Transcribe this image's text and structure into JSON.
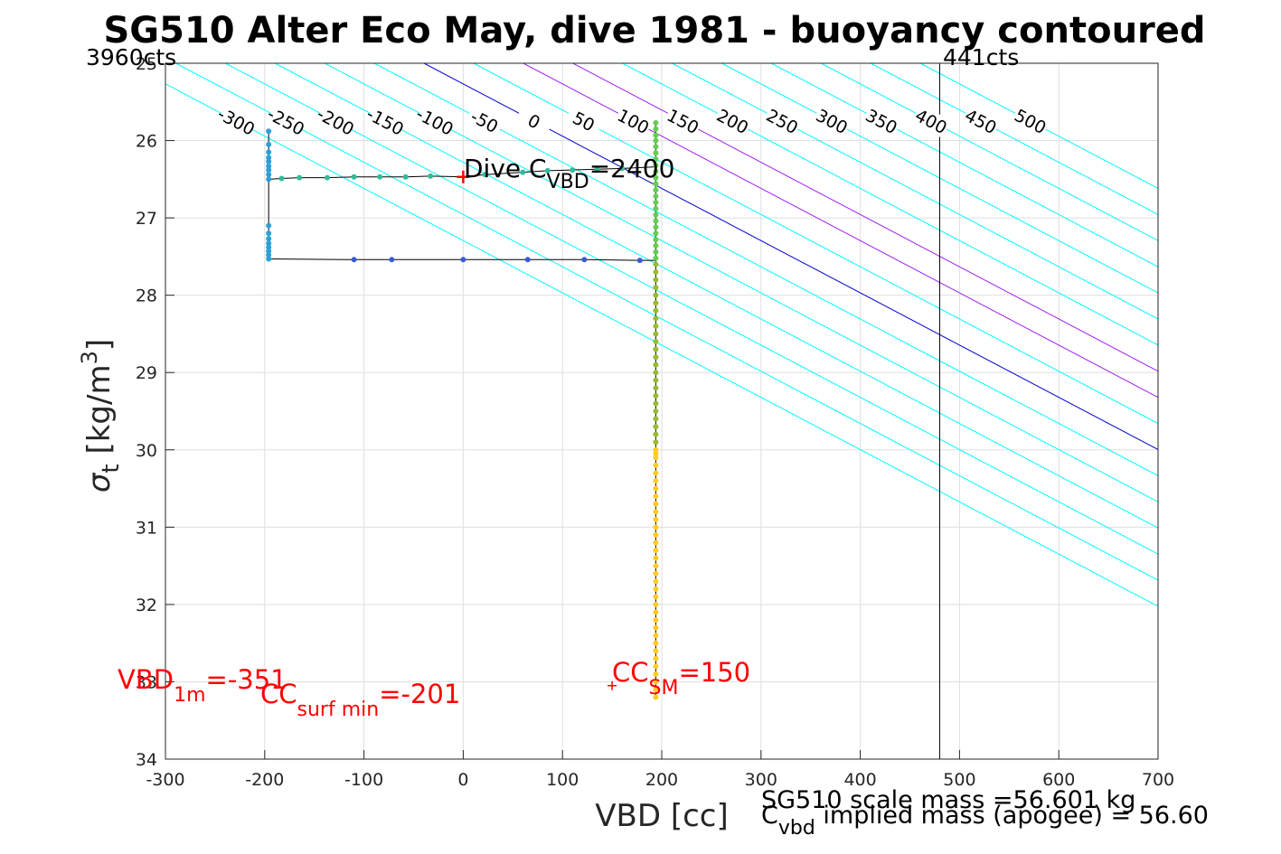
{
  "chart_data": {
    "type": "scatter",
    "title": "SG510 Alter Eco May, dive 1981 - buoyancy contoured",
    "xlabel": "VBD [cc]",
    "ylabel_main": "σ",
    "ylabel_sub": "t",
    "ylabel_units": "[kg/m",
    "ylabel_exp": "3",
    "ylabel_close": "]",
    "xlim": [
      -300,
      700
    ],
    "ylim": [
      25,
      34
    ],
    "y_reversed": true,
    "grid": true,
    "xticks": [
      -300,
      -200,
      -100,
      0,
      100,
      200,
      300,
      400,
      500,
      600,
      700
    ],
    "yticks": [
      25,
      26,
      27,
      28,
      29,
      30,
      31,
      32,
      33,
      34
    ],
    "contour_slope_cc_per_sigma": 148,
    "contour_base_offset": -39.5,
    "contours": [
      -300,
      -250,
      -200,
      -150,
      -100,
      -50,
      0,
      50,
      100,
      150,
      200,
      250,
      300,
      350,
      400,
      450,
      500
    ],
    "contour_colors": {
      "default": "#00ffff",
      "zero": "#0000cc",
      "special": "#a020f0"
    },
    "special_contours": [
      100,
      150
    ],
    "upper_labels": [
      {
        "text": "-300",
        "value": -300
      },
      {
        "text": "-250",
        "value": -250
      },
      {
        "text": "-200",
        "value": -200
      },
      {
        "text": "-150",
        "value": -150
      },
      {
        "text": "-100",
        "value": -100
      },
      {
        "text": "-50",
        "value": -50
      },
      {
        "text": "0",
        "value": 0
      },
      {
        "text": "50",
        "value": 50
      },
      {
        "text": "100",
        "value": 100
      },
      {
        "text": "150",
        "value": 150
      },
      {
        "text": "200",
        "value": 200
      },
      {
        "text": "250",
        "value": 250
      },
      {
        "text": "300",
        "value": 300
      },
      {
        "text": "350",
        "value": 350
      },
      {
        "text": "400",
        "value": 400
      },
      {
        "text": "450",
        "value": 450
      },
      {
        "text": "500",
        "value": 500
      }
    ],
    "lower_labels": [
      {
        "text": "0",
        "value": 0
      },
      {
        "text": "50",
        "value": 50
      },
      {
        "text": "100",
        "value": 100
      },
      {
        "text": "150",
        "value": 150
      },
      {
        "text": "200",
        "value": 200
      },
      {
        "text": "250",
        "value": 250
      },
      {
        "text": "300",
        "value": 300
      },
      {
        "text": "350",
        "value": 350
      },
      {
        "text": "400",
        "value": 400
      },
      {
        "text": "450",
        "value": 450
      },
      {
        "text": "500",
        "value": 500
      }
    ],
    "vertical_marker_x": 480,
    "count_labels": {
      "left": "3960cts",
      "right": "441cts"
    },
    "dive_marker": {
      "x": 0,
      "y": 26.47,
      "color": "#ff0000"
    },
    "cc_sm_marker": {
      "x": 150,
      "y": 33.05,
      "color": "#ff0000"
    },
    "dive_cvbd": {
      "prefix": "Dive C",
      "sub": "VBD",
      "suffix": "=2400"
    },
    "vbd_1m": {
      "prefix": "VBD",
      "sub": "1m",
      "suffix": "=-351",
      "color": "#ff0000"
    },
    "cc_surf_min": {
      "prefix": "CC",
      "sub": "surf min",
      "suffix": "=-201",
      "color": "#ff0000"
    },
    "cc_sm": {
      "prefix": "CC",
      "sub": "SM",
      "suffix": "=150",
      "color": "#ff0000"
    },
    "mass_line1": "SG510 scale mass =56.601 kg",
    "mass_line2_prefix": "C",
    "mass_line2_sub": "vbd",
    "mass_line2_suffix": " implied mass (apogee) = 56.60",
    "series": [
      {
        "color": "#2ca0d8",
        "path": [
          [
            -196,
            25.88
          ],
          [
            -196,
            27.53
          ]
        ],
        "points": [
          [
            -196,
            25.88
          ],
          [
            -196,
            26.05
          ],
          [
            -196,
            26.15
          ],
          [
            -196,
            26.22
          ],
          [
            -196,
            26.27
          ],
          [
            -196,
            26.33
          ],
          [
            -196,
            26.38
          ],
          [
            -196,
            26.44
          ],
          [
            -196,
            26.5
          ],
          [
            -196,
            27.1
          ],
          [
            -196,
            27.2
          ],
          [
            -196,
            27.27
          ],
          [
            -196,
            27.33
          ],
          [
            -196,
            27.38
          ],
          [
            -196,
            27.43
          ],
          [
            -196,
            27.48
          ],
          [
            -196,
            27.53
          ]
        ]
      },
      {
        "color": "#33bb99",
        "path": [
          [
            -196,
            26.5
          ],
          [
            -183,
            26.49
          ],
          [
            -165,
            26.48
          ],
          [
            -137,
            26.48
          ],
          [
            -110,
            26.47
          ],
          [
            -84,
            26.47
          ],
          [
            -58,
            26.47
          ],
          [
            -33,
            26.46
          ],
          [
            0,
            26.47
          ],
          [
            22,
            26.44
          ],
          [
            60,
            26.41
          ],
          [
            85,
            26.39
          ],
          [
            110,
            26.38
          ],
          [
            135,
            26.37
          ],
          [
            160,
            26.36
          ],
          [
            194,
            26.34
          ]
        ],
        "points": [
          [
            -183,
            26.49
          ],
          [
            -165,
            26.48
          ],
          [
            -137,
            26.48
          ],
          [
            -110,
            26.47
          ],
          [
            -84,
            26.47
          ],
          [
            -58,
            26.47
          ],
          [
            -33,
            26.46
          ],
          [
            22,
            26.44
          ],
          [
            60,
            26.41
          ],
          [
            85,
            26.39
          ],
          [
            110,
            26.38
          ],
          [
            135,
            26.37
          ],
          [
            160,
            26.36
          ]
        ]
      },
      {
        "color": "#3a5ad8",
        "path": [
          [
            -196,
            27.53
          ],
          [
            -110,
            27.54
          ],
          [
            -72,
            27.54
          ],
          [
            0,
            27.54
          ],
          [
            65,
            27.54
          ],
          [
            122,
            27.54
          ],
          [
            178,
            27.55
          ],
          [
            194,
            27.55
          ]
        ],
        "points": [
          [
            -110,
            27.54
          ],
          [
            -72,
            27.54
          ],
          [
            0,
            27.54
          ],
          [
            65,
            27.54
          ],
          [
            122,
            27.54
          ],
          [
            178,
            27.55
          ]
        ]
      },
      {
        "color": "#66cc55",
        "path": [
          [
            194,
            25.77
          ],
          [
            194,
            33.2
          ]
        ],
        "points": [
          [
            194,
            25.77
          ],
          [
            194,
            25.85
          ],
          [
            194,
            25.93
          ],
          [
            194,
            26.0
          ],
          [
            194,
            26.08
          ],
          [
            194,
            26.16
          ],
          [
            194,
            26.24
          ],
          [
            194,
            26.32
          ],
          [
            194,
            26.4
          ],
          [
            194,
            26.48
          ],
          [
            194,
            26.56
          ],
          [
            194,
            26.64
          ],
          [
            194,
            26.72
          ],
          [
            194,
            26.8
          ],
          [
            194,
            26.88
          ],
          [
            194,
            26.96
          ],
          [
            194,
            27.04
          ],
          [
            194,
            27.12
          ],
          [
            194,
            27.2
          ],
          [
            194,
            27.28
          ],
          [
            194,
            27.36
          ],
          [
            194,
            27.44
          ],
          [
            194,
            27.52
          ]
        ]
      },
      {
        "color": "#99bb33",
        "path": [],
        "points": [
          [
            194,
            27.6
          ],
          [
            194,
            27.7
          ],
          [
            194,
            27.8
          ],
          [
            194,
            27.9
          ],
          [
            194,
            28.0
          ],
          [
            194,
            28.1
          ],
          [
            194,
            28.2
          ],
          [
            194,
            28.3
          ],
          [
            194,
            28.4
          ],
          [
            194,
            28.5
          ],
          [
            194,
            28.6
          ],
          [
            194,
            28.7
          ],
          [
            194,
            28.8
          ],
          [
            194,
            28.9
          ],
          [
            194,
            29.0
          ],
          [
            194,
            29.1
          ],
          [
            194,
            29.2
          ],
          [
            194,
            29.3
          ],
          [
            194,
            29.4
          ],
          [
            194,
            29.5
          ],
          [
            194,
            29.6
          ],
          [
            194,
            29.7
          ],
          [
            194,
            29.8
          ],
          [
            194,
            29.9
          ]
        ]
      },
      {
        "color": "#ffcc22",
        "path": [],
        "points": [
          [
            194,
            30.0
          ],
          [
            194,
            30.05
          ],
          [
            194,
            30.1
          ],
          [
            194,
            30.2
          ],
          [
            194,
            30.3
          ],
          [
            194,
            30.4
          ],
          [
            194,
            30.5
          ],
          [
            194,
            30.6
          ],
          [
            194,
            30.7
          ],
          [
            194,
            30.8
          ],
          [
            194,
            30.9
          ],
          [
            194,
            31.0
          ],
          [
            194,
            31.1
          ],
          [
            194,
            31.2
          ],
          [
            194,
            31.3
          ],
          [
            194,
            31.4
          ],
          [
            194,
            31.5
          ],
          [
            194,
            31.6
          ],
          [
            194,
            31.7
          ],
          [
            194,
            31.8
          ],
          [
            194,
            31.9
          ],
          [
            194,
            32.0
          ],
          [
            194,
            32.1
          ],
          [
            194,
            32.2
          ],
          [
            194,
            32.3
          ],
          [
            194,
            32.4
          ],
          [
            194,
            32.5
          ],
          [
            194,
            32.6
          ],
          [
            194,
            32.7
          ],
          [
            194,
            32.8
          ],
          [
            194,
            32.9
          ],
          [
            194,
            33.0
          ],
          [
            194,
            33.1
          ],
          [
            194,
            33.2
          ]
        ]
      }
    ]
  }
}
